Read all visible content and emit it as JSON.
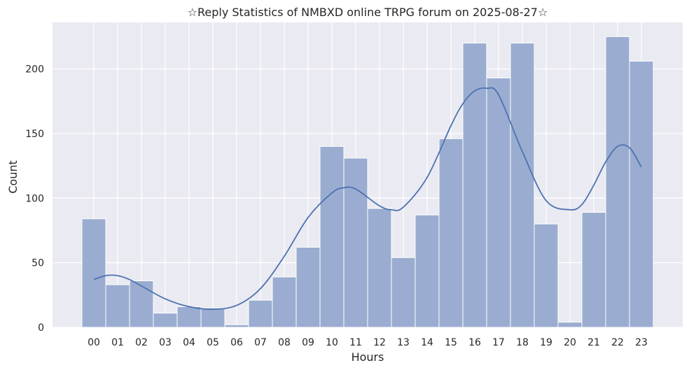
{
  "chart_data": {
    "type": "bar",
    "title": "☆Reply Statistics of NMBXD online TRPG forum on 2025-08-27☆",
    "xlabel": "Hours",
    "ylabel": "Count",
    "categories": [
      "00",
      "01",
      "02",
      "03",
      "04",
      "05",
      "06",
      "07",
      "08",
      "09",
      "10",
      "11",
      "12",
      "13",
      "14",
      "15",
      "16",
      "17",
      "18",
      "19",
      "20",
      "21",
      "22",
      "23"
    ],
    "values": [
      84,
      33,
      36,
      11,
      16,
      15,
      2,
      21,
      39,
      62,
      140,
      131,
      92,
      54,
      87,
      146,
      220,
      193,
      220,
      80,
      4,
      89,
      225,
      206
    ],
    "kde": {
      "x": [
        0,
        0.5,
        1,
        1.5,
        2,
        3,
        4,
        5,
        6,
        7,
        8,
        9,
        10,
        10.5,
        11,
        12,
        12.5,
        13,
        14,
        15,
        15.5,
        16,
        16.5,
        17,
        18,
        19,
        20,
        20.5,
        21,
        21.5,
        22,
        22.5,
        23
      ],
      "y": [
        37,
        40,
        40,
        37,
        32,
        22,
        16,
        14,
        17,
        30,
        55,
        85,
        104,
        108,
        107,
        94,
        91,
        93,
        116,
        156,
        173,
        183,
        185,
        180,
        136,
        98,
        91,
        95,
        110,
        128,
        140,
        139,
        124
      ]
    },
    "ylim": [
      0,
      236
    ],
    "yticks": [
      0,
      50,
      100,
      150,
      200
    ],
    "grid": true,
    "colors": {
      "bar_fill": "#9aadd0",
      "bar_stroke": "#ffffff",
      "kde_line": "#4c72b0",
      "plot_bg": "#eaeaf2",
      "grid": "#ffffff"
    }
  }
}
